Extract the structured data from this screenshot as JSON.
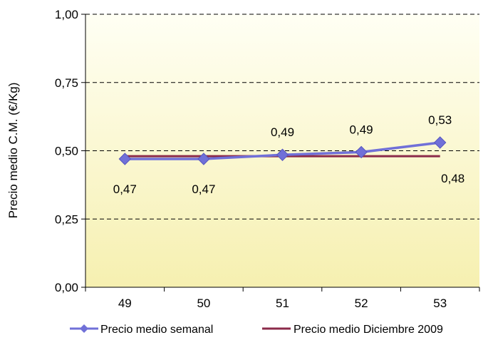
{
  "chart_data": {
    "type": "line",
    "x": [
      49,
      50,
      51,
      52,
      53
    ],
    "x_tick_labels": [
      "49",
      "50",
      "51",
      "52",
      "53"
    ],
    "ylabel": "Precio medio C.M. (€/Kg)",
    "ylim": [
      0,
      1
    ],
    "y_tick_labels": [
      "0,00",
      "0,25",
      "0,50",
      "0,75",
      "1,00"
    ],
    "y_ticks": [
      0,
      0.25,
      0.5,
      0.75,
      1
    ],
    "grid": "horizontal dashed",
    "legend_position": "bottom",
    "series": [
      {
        "name": "Precio medio semanal",
        "values": [
          0.47,
          0.47,
          0.485,
          0.495,
          0.53
        ],
        "data_labels": [
          "0,47",
          "0,47",
          "0,49",
          "0,49",
          "0,53"
        ],
        "color": "#7070d8",
        "marker": "diamond"
      },
      {
        "name": "Precio medio Diciembre 2009",
        "values": [
          0.48,
          0.48,
          0.48,
          0.48,
          0.48
        ],
        "data_labels": [
          "0,48"
        ],
        "color": "#8b2a4a",
        "marker": "none"
      }
    ],
    "plot_background": [
      "#fffff4",
      "#f6f0b0"
    ]
  }
}
